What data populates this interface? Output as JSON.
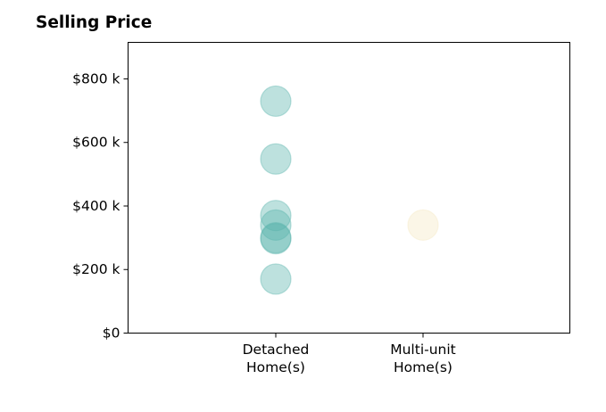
{
  "chart_data": {
    "type": "scatter",
    "title": "Selling Price",
    "xlabel": "",
    "ylabel": "",
    "categories": [
      "Detached\nHome(s)",
      "Multi-unit\nHome(s)"
    ],
    "ylim": [
      0,
      915000
    ],
    "yticks": [
      0,
      200000,
      400000,
      600000,
      800000
    ],
    "ytick_labels": [
      "$0",
      "$200 k",
      "$400 k",
      "$600 k",
      "$800 k"
    ],
    "grid": false,
    "series": [
      {
        "category": "Detached\nHome(s)",
        "color": "#5ab4ac",
        "values": [
          730000,
          548000,
          370000,
          340000,
          300000,
          297000,
          170000
        ]
      },
      {
        "category": "Multi-unit\nHome(s)",
        "color": "#f6e8c3",
        "values": [
          340000
        ]
      }
    ]
  }
}
